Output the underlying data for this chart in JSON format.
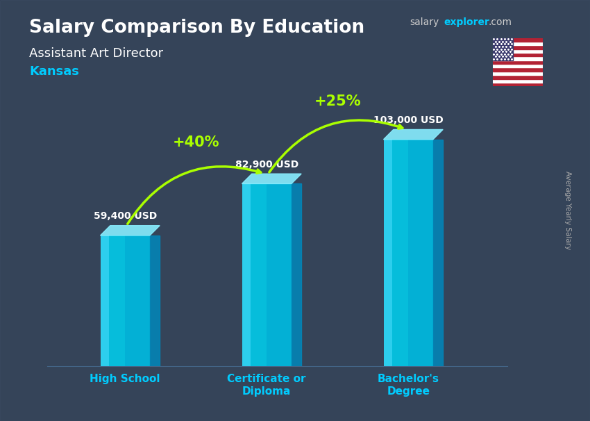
{
  "title": "Salary Comparison By Education",
  "subtitle": "Assistant Art Director",
  "location": "Kansas",
  "ylabel": "Average Yearly Salary",
  "categories": [
    "High School",
    "Certificate or\nDiploma",
    "Bachelor's\nDegree"
  ],
  "values": [
    59400,
    82900,
    103000
  ],
  "value_labels": [
    "59,400 USD",
    "82,900 USD",
    "103,000 USD"
  ],
  "bar_color_face": "#00cfee",
  "bar_color_side": "#0088bb",
  "bar_color_top": "#88eeff",
  "bar_color_highlight": "#66ddff",
  "background_color": "#1a2535",
  "title_color": "#ffffff",
  "subtitle_color": "#ffffff",
  "location_color": "#00ccff",
  "value_label_color": "#ffffff",
  "xlabel_color": "#00ccff",
  "arrow_color": "#aaff00",
  "pct_labels": [
    "+40%",
    "+25%"
  ],
  "ylim": [
    0,
    130000
  ],
  "bar_width": 0.35
}
